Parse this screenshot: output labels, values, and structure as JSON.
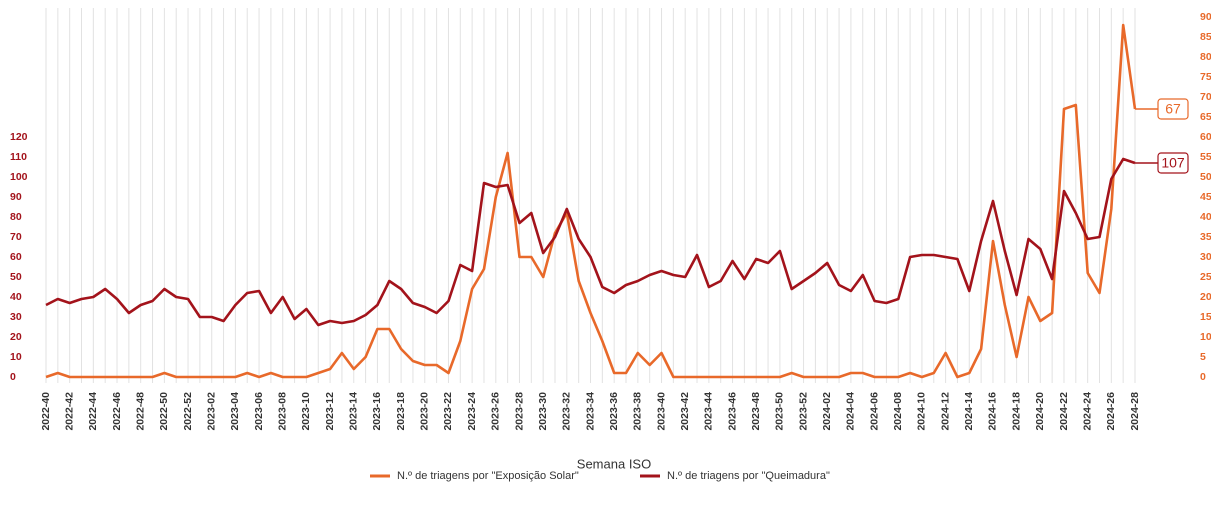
{
  "chart_data": {
    "type": "line",
    "x_label": "Semana ISO",
    "categories": [
      "2022-40",
      null,
      "2022-42",
      null,
      "2022-44",
      null,
      "2022-46",
      null,
      "2022-48",
      null,
      "2022-50",
      null,
      "2022-52",
      null,
      "2023-02",
      null,
      "2023-04",
      null,
      "2023-06",
      null,
      "2023-08",
      null,
      "2023-10",
      null,
      "2023-12",
      null,
      "2023-14",
      null,
      "2023-16",
      null,
      "2023-18",
      null,
      "2023-20",
      null,
      "2023-22",
      null,
      "2023-24",
      null,
      "2023-26",
      null,
      "2023-28",
      null,
      "2023-30",
      null,
      "2023-32",
      null,
      "2023-34",
      null,
      "2023-36",
      null,
      "2023-38",
      null,
      "2023-40",
      null,
      "2023-42",
      null,
      "2023-44",
      null,
      "2023-46",
      null,
      "2023-48",
      null,
      "2023-50",
      null,
      "2023-52",
      null,
      "2024-02",
      null,
      "2024-04",
      null,
      "2024-06",
      null,
      "2024-08",
      null,
      "2024-10",
      null,
      "2024-12",
      null,
      "2024-14",
      null,
      "2024-16",
      null,
      "2024-18",
      null,
      "2024-20",
      null,
      "2024-22",
      null,
      "2024-24",
      null,
      "2024-26",
      null,
      "2024-28"
    ],
    "series": [
      {
        "name": "N.º de triagens por \"Exposição Solar\"",
        "color": "#e8692a",
        "axis": "y2",
        "values": [
          0,
          1,
          0,
          0,
          0,
          0,
          0,
          0,
          0,
          0,
          1,
          0,
          0,
          0,
          0,
          0,
          0,
          1,
          0,
          1,
          0,
          0,
          0,
          1,
          2,
          6,
          2,
          5,
          12,
          12,
          7,
          4,
          3,
          3,
          1,
          9,
          22,
          27,
          45,
          56,
          30,
          30,
          25,
          36,
          41,
          24,
          16,
          9,
          1,
          1,
          6,
          3,
          6,
          0,
          0,
          0,
          0,
          0,
          0,
          0,
          0,
          0,
          0,
          1,
          0,
          0,
          0,
          0,
          1,
          1,
          0,
          0,
          0,
          1,
          0,
          1,
          6,
          0,
          1,
          7,
          34,
          18,
          5,
          20,
          14,
          16,
          67,
          68,
          26,
          21,
          42,
          88,
          67
        ]
      },
      {
        "name": "N.º de triagens por \"Queimadura\"",
        "color": "#a3131b",
        "values": [
          36,
          39,
          37,
          39,
          40,
          44,
          39,
          32,
          36,
          38,
          44,
          40,
          39,
          30,
          30,
          28,
          36,
          42,
          43,
          32,
          40,
          29,
          34,
          26,
          28,
          27,
          28,
          31,
          36,
          48,
          44,
          37,
          35,
          32,
          38,
          56,
          53,
          97,
          95,
          96,
          77,
          82,
          62,
          70,
          84,
          69,
          60,
          45,
          42,
          46,
          48,
          51,
          53,
          51,
          50,
          61,
          45,
          48,
          58,
          49,
          59,
          57,
          63,
          44,
          48,
          52,
          57,
          46,
          43,
          51,
          38,
          37,
          39,
          60,
          61,
          61,
          60,
          59,
          43,
          68,
          88,
          63,
          41,
          69,
          64,
          49,
          93,
          82,
          69,
          70,
          99,
          109,
          107
        ]
      }
    ],
    "ylim": [
      0,
      180
    ],
    "yticks": [
      0,
      10,
      20,
      30,
      40,
      50,
      60,
      70,
      80,
      90,
      100,
      110,
      120
    ],
    "y2lim": [
      0,
      90
    ],
    "y2ticks": [
      0,
      5,
      10,
      15,
      20,
      25,
      30,
      35,
      40,
      45,
      50,
      55,
      60,
      65,
      70,
      75,
      80,
      85,
      90
    ],
    "grid": "x",
    "legend": "bottom"
  }
}
